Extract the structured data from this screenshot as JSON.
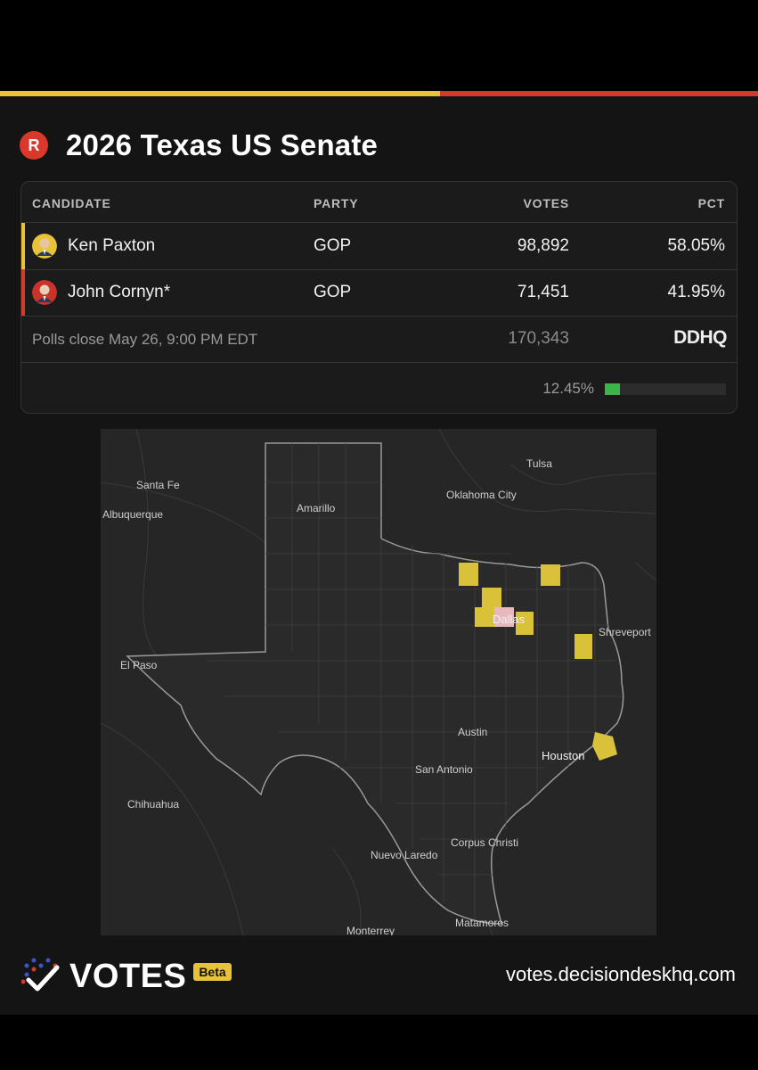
{
  "header": {
    "title": "2026 Texas US Senate",
    "party_badge": "R"
  },
  "colors": {
    "leader": "#e8c33a",
    "second": "#d23a2a",
    "progress": "#3cb44b",
    "county_won": "#d9c23a"
  },
  "table": {
    "columns": [
      "CANDIDATE",
      "PARTY",
      "VOTES",
      "PCT"
    ],
    "rows": [
      {
        "name": "Ken Paxton",
        "party": "GOP",
        "votes": "98,892",
        "pct": "58.05%"
      },
      {
        "name": "John Cornyn*",
        "party": "GOP",
        "votes": "71,451",
        "pct": "41.95%"
      }
    ],
    "polls_close": "Polls close May 26, 9:00 PM EDT",
    "total_votes": "170,343",
    "source_logo": "DDHQ",
    "reporting_pct": "12.45%",
    "reporting_fraction": 0.1245
  },
  "map": {
    "labels": [
      "Santa Fe",
      "Albuquerque",
      "Amarillo",
      "Tulsa",
      "Oklahoma City",
      "Dallas",
      "Shreveport",
      "El Paso",
      "Austin",
      "Houston",
      "San Antonio",
      "Chihuahua",
      "Corpus Christi",
      "Nuevo Laredo",
      "Matamoros",
      "Monterrey"
    ]
  },
  "footer": {
    "brand": "VOTES",
    "beta": "Beta",
    "site": "votes.decisiondeskhq.com"
  }
}
